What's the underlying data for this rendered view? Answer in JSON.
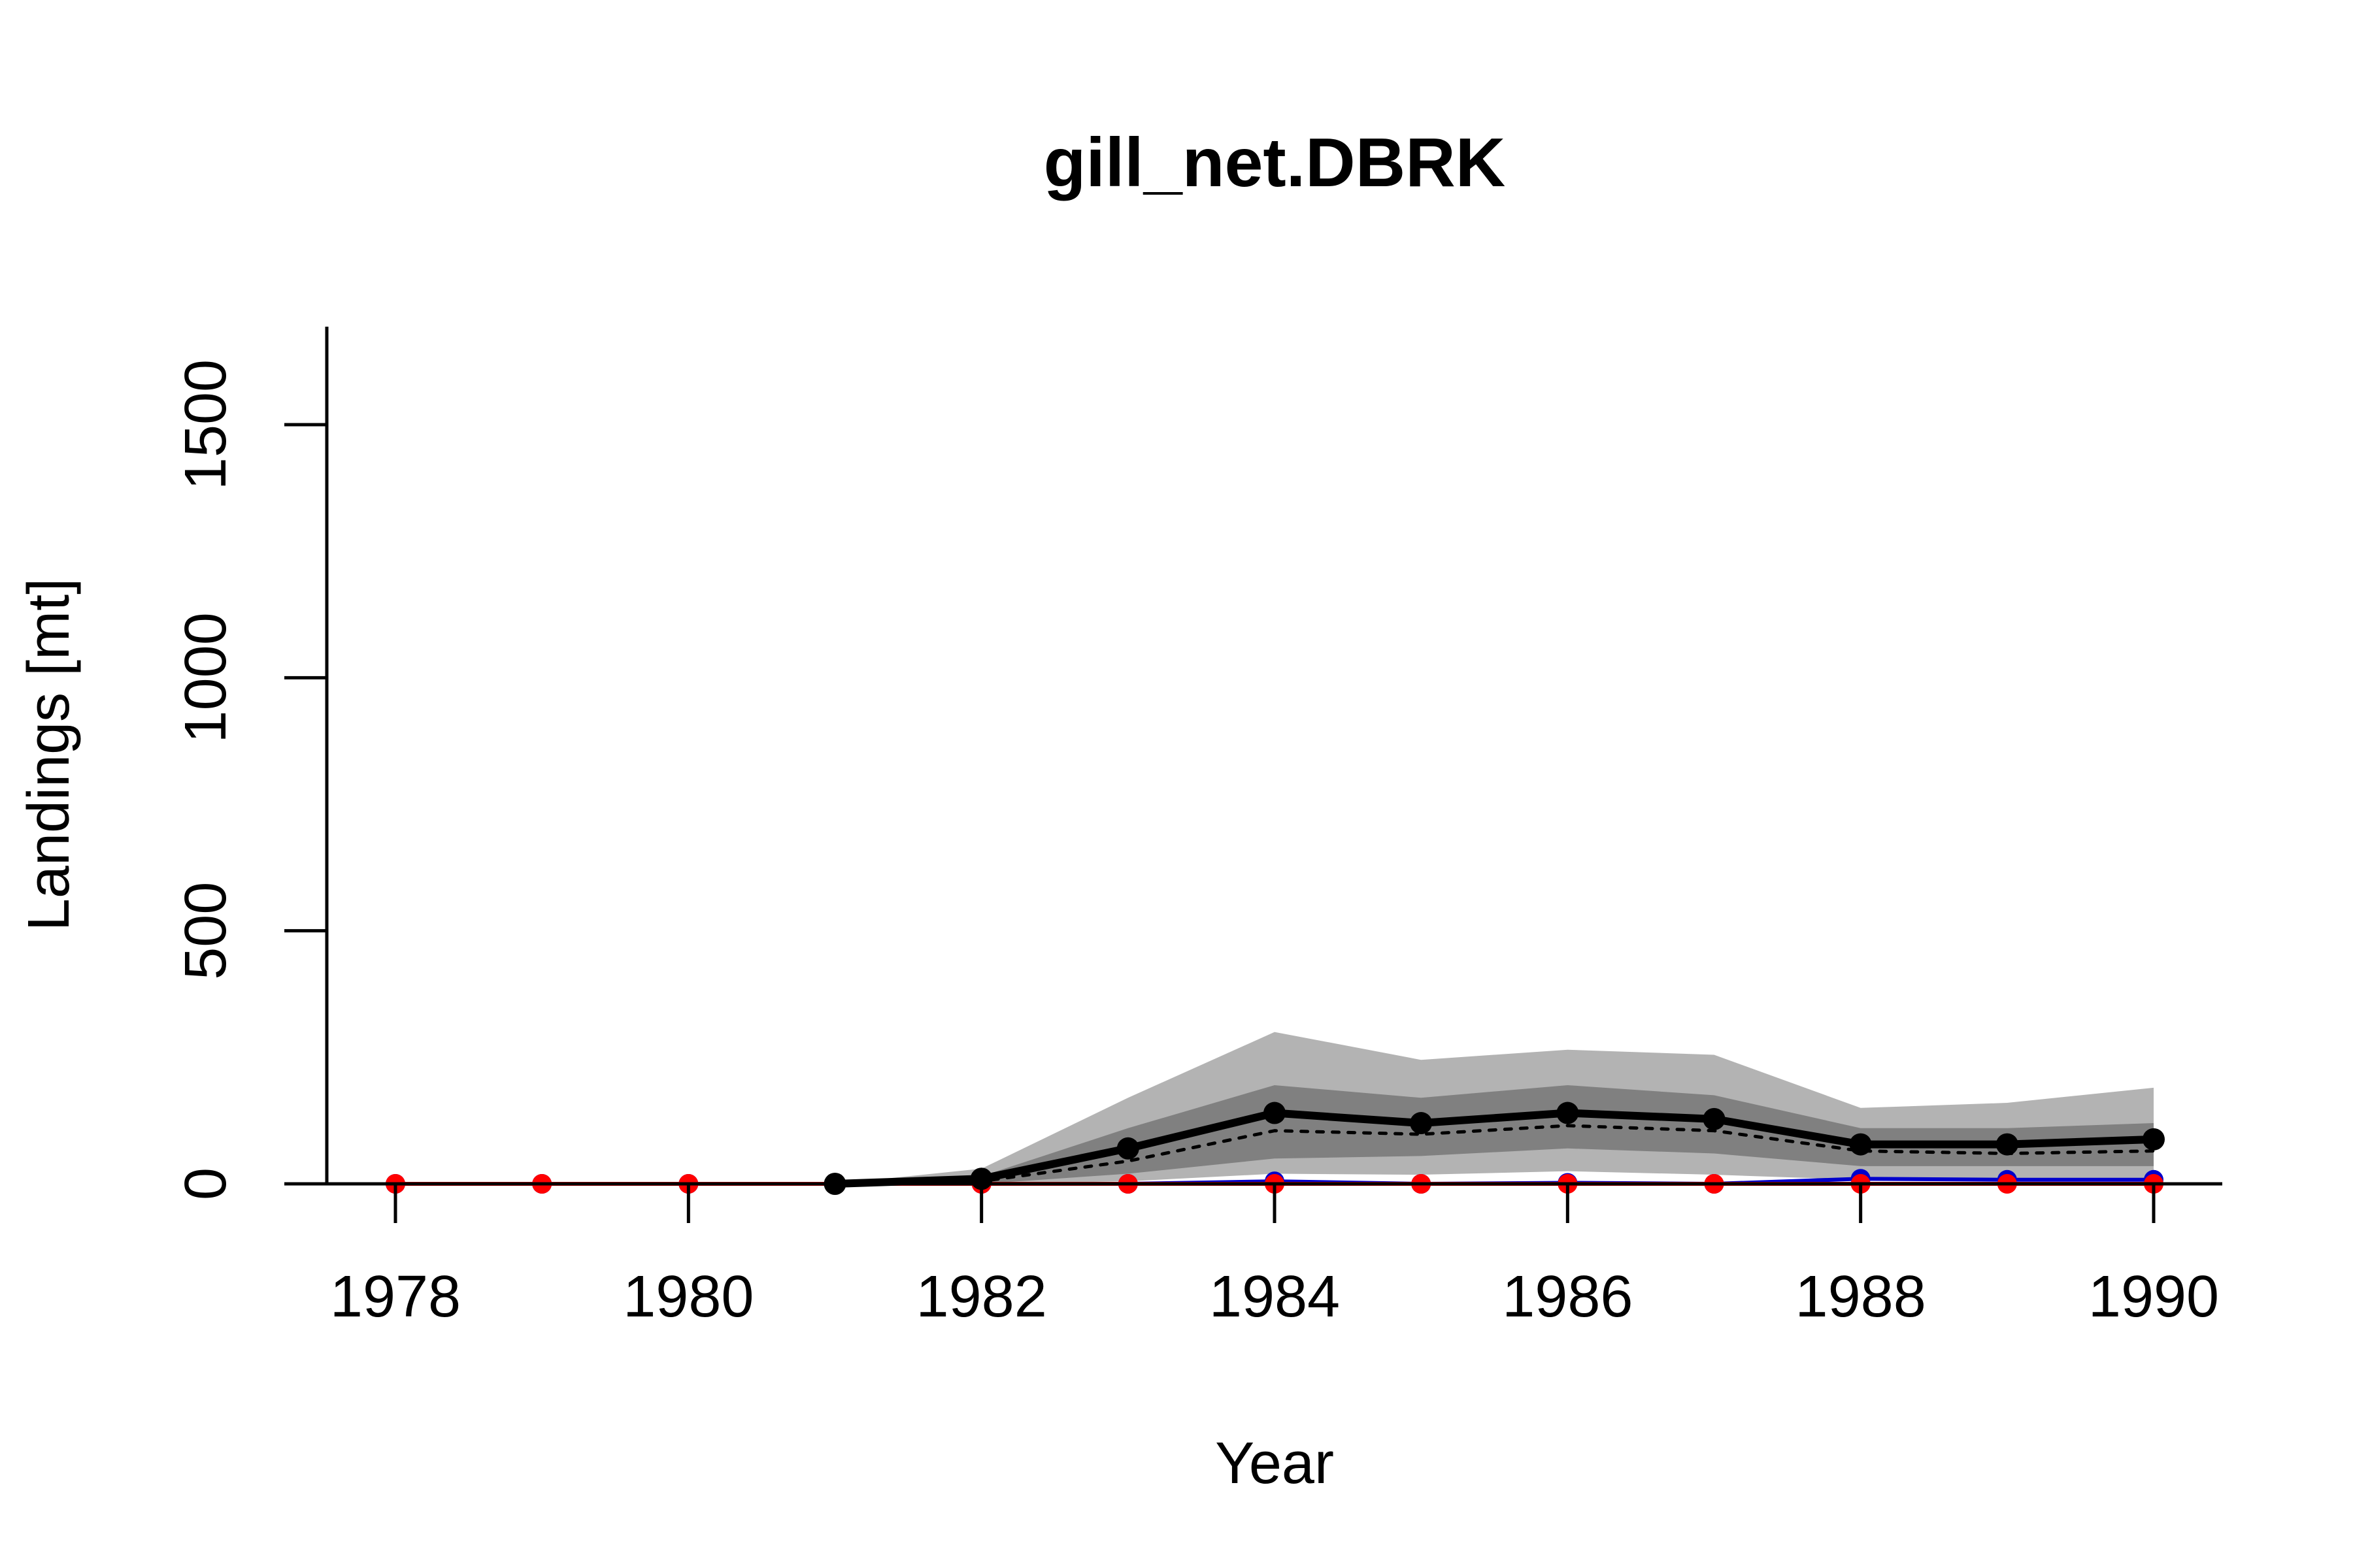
{
  "chart_data": {
    "type": "line",
    "title": "gill_net.DBRK",
    "xlabel": "Year",
    "ylabel": "Landings [mt]",
    "xlim": [
      1977.5,
      1990.5
    ],
    "ylim": [
      0,
      1700
    ],
    "x_ticks": [
      1978,
      1980,
      1982,
      1984,
      1986,
      1988,
      1990
    ],
    "x_tick_labels": [
      "1978",
      "1980",
      "1982",
      "1984",
      "1986",
      "1988",
      "1990"
    ],
    "y_ticks": [
      0,
      500,
      1000,
      1500
    ],
    "y_tick_labels": [
      "0",
      "500",
      "1000",
      "1500"
    ],
    "grid": false,
    "bands": [
      {
        "name": "outer interval",
        "color": "#b3b3b3",
        "x": [
          1981,
          1982,
          1983,
          1984,
          1985,
          1986,
          1987,
          1988,
          1989,
          1990
        ],
        "lower": [
          0,
          0,
          5,
          20,
          18,
          25,
          18,
          8,
          8,
          8
        ],
        "upper": [
          0,
          30,
          170,
          300,
          245,
          265,
          255,
          150,
          160,
          190
        ]
      },
      {
        "name": "inner interval",
        "color": "#808080",
        "x": [
          1981,
          1982,
          1983,
          1984,
          1985,
          1986,
          1987,
          1988,
          1989,
          1990
        ],
        "lower": [
          0,
          0,
          20,
          50,
          55,
          70,
          60,
          35,
          35,
          35
        ],
        "upper": [
          0,
          15,
          110,
          195,
          170,
          195,
          175,
          110,
          110,
          120
        ]
      }
    ],
    "series": [
      {
        "name": "estimate",
        "style": "solid",
        "color": "#000000",
        "markers": true,
        "x": [
          1981,
          1982,
          1983,
          1984,
          1985,
          1986,
          1987,
          1988,
          1989,
          1990
        ],
        "values": [
          0,
          10,
          70,
          140,
          120,
          140,
          128,
          78,
          78,
          88
        ]
      },
      {
        "name": "median",
        "style": "dotted",
        "color": "#000000",
        "markers": false,
        "x": [
          1981,
          1982,
          1983,
          1984,
          1985,
          1986,
          1987,
          1988,
          1989,
          1990
        ],
        "values": [
          0,
          5,
          45,
          105,
          98,
          115,
          105,
          65,
          60,
          65
        ]
      },
      {
        "name": "blue series",
        "style": "solid",
        "color": "#0000cc",
        "markers": true,
        "x": [
          1978,
          1979,
          1980,
          1981,
          1982,
          1983,
          1984,
          1985,
          1986,
          1987,
          1988,
          1989,
          1990
        ],
        "values": [
          0,
          0,
          0,
          0,
          0,
          0,
          5,
          0,
          2,
          0,
          10,
          8,
          8
        ]
      },
      {
        "name": "red series",
        "style": "solid",
        "color": "#ff0000",
        "markers": true,
        "x": [
          1978,
          1979,
          1980,
          1981,
          1982,
          1983,
          1984,
          1985,
          1986,
          1987,
          1988,
          1989,
          1990
        ],
        "values": [
          0,
          0,
          0,
          0,
          0,
          0,
          0,
          0,
          0,
          0,
          0,
          0,
          0
        ]
      }
    ]
  }
}
